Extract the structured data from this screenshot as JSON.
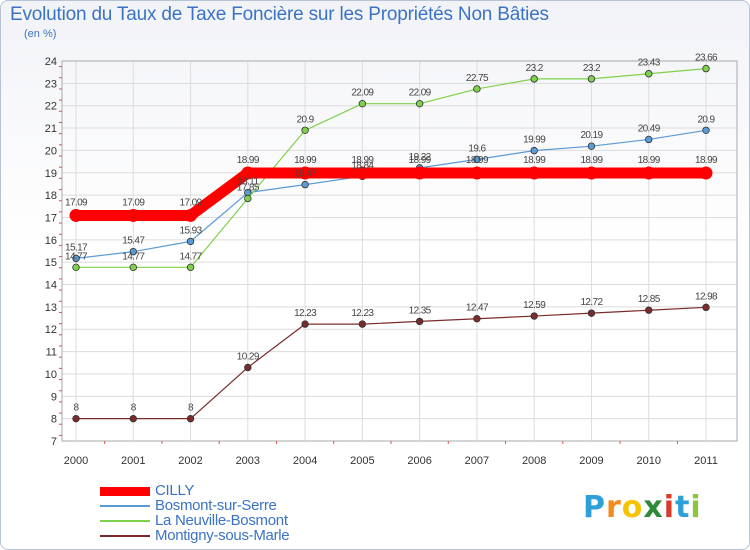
{
  "header": {
    "title": "Evolution du Taux de Taxe Foncière sur les Propriétés Non Bâties",
    "unit": "(en %)"
  },
  "logo": {
    "letters": [
      "P",
      "r",
      "o",
      "x",
      "i",
      "t",
      "i"
    ],
    "colors": [
      "#2f9fd7",
      "#f28c1e",
      "#f5c400",
      "#2e8b3a",
      "#d93a2b",
      "#2f9fd7",
      "#8cc63f"
    ]
  },
  "chart_data": {
    "type": "line",
    "title": "Evolution du Taux de Taxe Foncière sur les Propriétés Non Bâties",
    "ylabel": "(en %)",
    "xlabel": "",
    "x": [
      "2000",
      "2001",
      "2002",
      "2003",
      "2004",
      "2005",
      "2006",
      "2007",
      "2008",
      "2009",
      "2010",
      "2011"
    ],
    "ylim": [
      7,
      24
    ],
    "yticks": [
      "7",
      "8",
      "9",
      "10",
      "11",
      "12",
      "13",
      "14",
      "15",
      "16",
      "17",
      "18",
      "19",
      "20",
      "21",
      "22",
      "23",
      "24"
    ],
    "grid": true,
    "legend_position": "bottom-left",
    "series": [
      {
        "name": "CILLY",
        "color": "#ff0000",
        "emphasis": true,
        "values": [
          17.09,
          17.09,
          17.09,
          18.99,
          18.99,
          18.99,
          18.99,
          18.99,
          18.99,
          18.99,
          18.99,
          18.99
        ],
        "labels": [
          "17.09",
          "17.09",
          "17.09",
          "18.99",
          "18.99",
          "18.99",
          "18.99",
          "18.99",
          "18.99",
          "18.99",
          "18.99",
          "18.99"
        ]
      },
      {
        "name": "Bosmont-sur-Serre",
        "color": "#5b9bd5",
        "emphasis": false,
        "values": [
          15.17,
          15.47,
          15.93,
          18.11,
          18.47,
          18.84,
          19.22,
          19.6,
          19.99,
          20.19,
          20.49,
          20.9
        ],
        "labels": [
          "15.17",
          "15.47",
          "15.93",
          "18.11",
          "18.47",
          "18.84",
          "19.22",
          "19.6",
          "19.99",
          "20.19",
          "20.49",
          "20.9"
        ]
      },
      {
        "name": "La Neuville-Bosmont",
        "color": "#7fd14b",
        "emphasis": false,
        "values": [
          14.77,
          14.77,
          14.77,
          17.85,
          20.9,
          22.09,
          22.09,
          22.75,
          23.2,
          23.2,
          23.43,
          23.66
        ],
        "labels": [
          "14.77",
          "14.77",
          "14.77",
          "17.85",
          "20.9",
          "22.09",
          "22.09",
          "22.75",
          "23.2",
          "23.2",
          "23.43",
          "23.66"
        ]
      },
      {
        "name": "Montigny-sous-Marle",
        "color": "#7a2c2c",
        "emphasis": false,
        "values": [
          8,
          8,
          8,
          10.29,
          12.23,
          12.23,
          12.35,
          12.47,
          12.59,
          12.72,
          12.85,
          12.98
        ],
        "labels": [
          "8",
          "8",
          "8",
          "10.29",
          "12.23",
          "12.23",
          "12.35",
          "12.47",
          "12.59",
          "12.72",
          "12.85",
          "12.98"
        ]
      }
    ]
  }
}
